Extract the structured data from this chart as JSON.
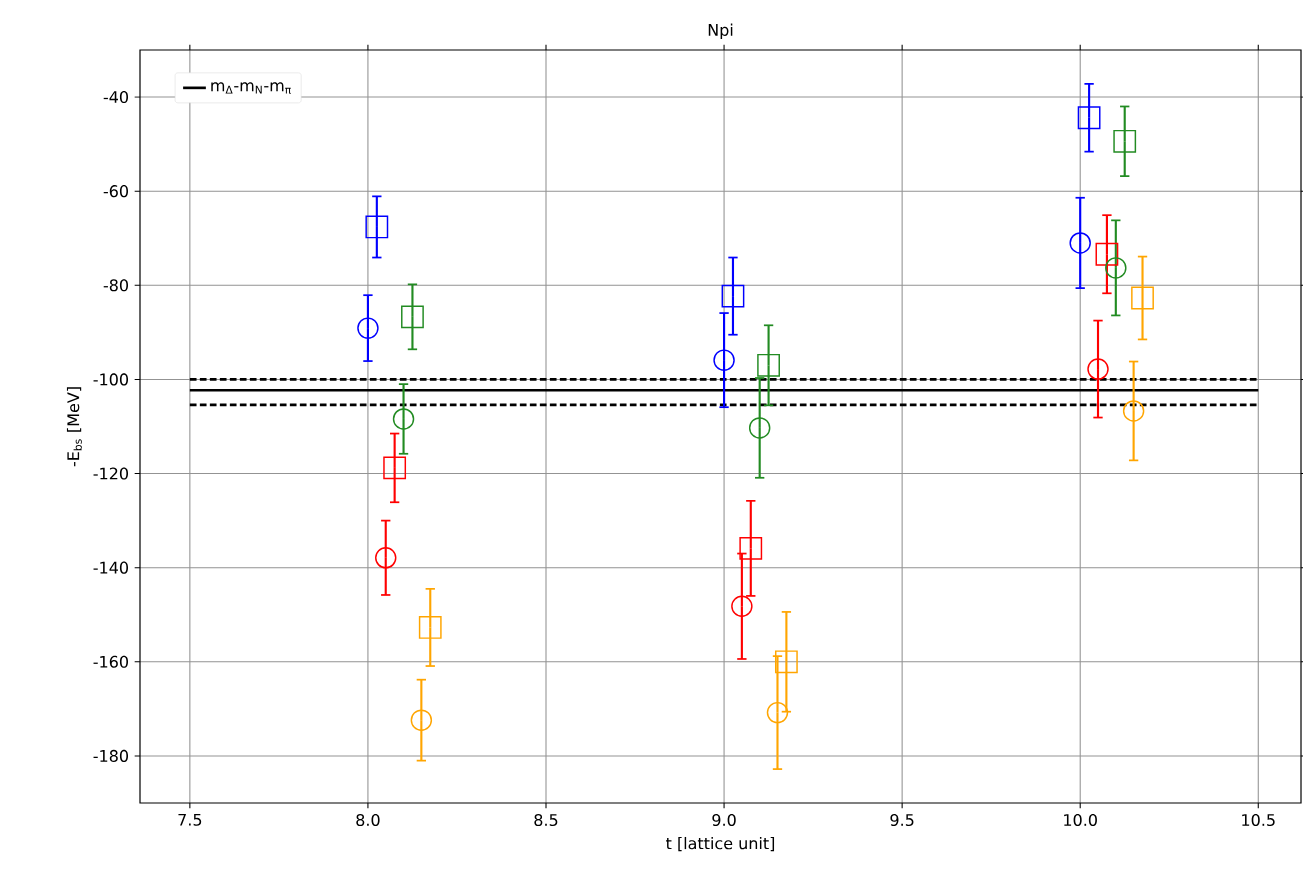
{
  "chart_data": {
    "type": "scatter",
    "title": "Npi",
    "xlabel": "t [lattice unit]",
    "ylabel": "-E$_{bs}$ [MeV]",
    "xlim": [
      7.36,
      10.62
    ],
    "ylim": [
      -190,
      -30
    ],
    "xticks": [
      7.5,
      {
        "value": 8,
        "label": "8.0"
      },
      8.5,
      {
        "value": 9,
        "label": "9.0"
      },
      9.5,
      {
        "value": 10,
        "label": "10.0"
      },
      10.5
    ],
    "yticks": [
      -180,
      -160,
      -140,
      -120,
      -100,
      -80,
      -60,
      -40
    ],
    "grid": true,
    "legend": "top left",
    "series": [
      {
        "type": "line",
        "name": "m$_{Δ}$-m$_{N}$-m$_{π}$",
        "color": "#000000",
        "line_style": "solid",
        "marker": "none",
        "x": [
          7.5,
          10.5
        ],
        "values": [
          -102.3,
          -102.3
        ]
      },
      {
        "type": "line",
        "color": "#000000",
        "line_style": "dashed",
        "marker": "none",
        "x": [
          7.5,
          10.5
        ],
        "values": [
          -100.0,
          -100.0
        ]
      },
      {
        "type": "line",
        "color": "#000000",
        "line_style": "dashed",
        "marker": "none",
        "x": [
          7.5,
          10.5
        ],
        "values": [
          -105.4,
          -105.4
        ]
      },
      {
        "color": "#0000ff",
        "marker": "circle",
        "x": [
          8.0,
          9.0,
          10.0
        ],
        "values": [
          -89.1,
          -95.9,
          -71.0
        ],
        "errors": [
          7.0,
          10.0,
          9.6
        ]
      },
      {
        "color": "#0000ff",
        "marker": "square",
        "x": [
          8.025,
          9.025,
          10.025
        ],
        "values": [
          -67.6,
          -82.3,
          -44.4
        ],
        "errors": [
          6.5,
          8.2,
          7.2
        ]
      },
      {
        "color": "#ff0000",
        "marker": "circle",
        "x": [
          8.05,
          9.05,
          10.05
        ],
        "values": [
          -137.9,
          -148.2,
          -97.8
        ],
        "errors": [
          7.9,
          11.2,
          10.3
        ]
      },
      {
        "color": "#ff0000",
        "marker": "square",
        "x": [
          8.075,
          9.075,
          10.075
        ],
        "values": [
          -118.8,
          -135.9,
          -73.4
        ],
        "errors": [
          7.3,
          10.1,
          8.3
        ]
      },
      {
        "color": "#228b22",
        "marker": "circle",
        "x": [
          8.1,
          9.1,
          10.1
        ],
        "values": [
          -108.4,
          -110.3,
          -76.3
        ],
        "errors": [
          7.4,
          10.6,
          10.1
        ]
      },
      {
        "color": "#228b22",
        "marker": "square",
        "x": [
          8.125,
          9.125,
          10.125
        ],
        "values": [
          -86.7,
          -97.0,
          -49.4
        ],
        "errors": [
          6.9,
          8.5,
          7.4
        ]
      },
      {
        "color": "#ffa500",
        "marker": "circle",
        "x": [
          8.15,
          9.15,
          10.15
        ],
        "values": [
          -172.4,
          -170.8,
          -106.7
        ],
        "errors": [
          8.6,
          12.0,
          10.5
        ]
      },
      {
        "color": "#ffa500",
        "marker": "square",
        "x": [
          8.175,
          9.175,
          10.175
        ],
        "values": [
          -152.7,
          -160.0,
          -82.7
        ],
        "errors": [
          8.2,
          10.6,
          8.8
        ]
      }
    ]
  }
}
